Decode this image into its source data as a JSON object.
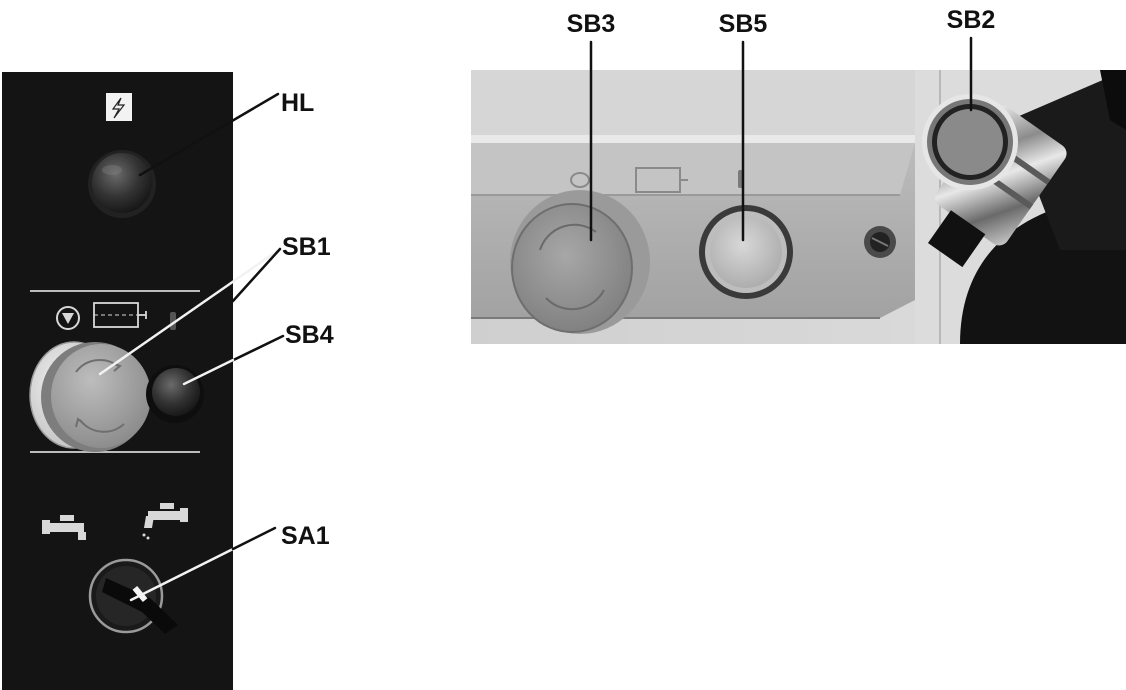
{
  "labels": {
    "hl": "HL",
    "sb1": "SB1",
    "sb4": "SB4",
    "sa1": "SA1",
    "sb3": "SB3",
    "sb5": "SB5",
    "sb2": "SB2"
  },
  "icons": {
    "panel_top": "lightning-bolt-icon",
    "panel_middle": [
      "stop-symbol-icon",
      "motor-icon"
    ],
    "panel_bottom": [
      "coolant-off-tap-icon",
      "coolant-on-tap-icon"
    ],
    "rail": [
      "circle-symbol-icon",
      "motor-icon",
      "bar-symbol-icon"
    ]
  },
  "colors": {
    "panel_background": "#141414",
    "photo_background": "#d0d0d0",
    "label_text": "#111111",
    "leader_line_on_white": "#111111",
    "leader_line_on_dark": "#f2f2f2"
  }
}
